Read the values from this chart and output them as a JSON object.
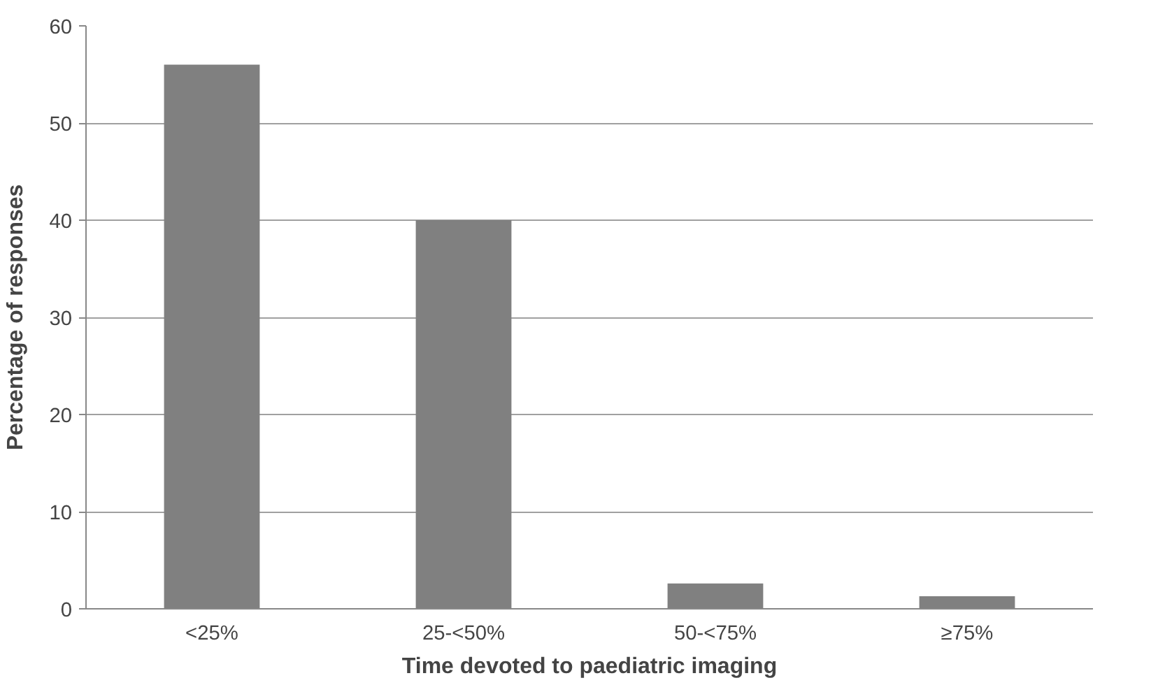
{
  "chart_data": {
    "type": "bar",
    "xlabel": "Time devoted to paediatric imaging",
    "ylabel": "Percentage of responses",
    "categories": [
      "<25%",
      "25-<50%",
      "50-<75%",
      "≥75%"
    ],
    "values": [
      56,
      40,
      2.6,
      1.3
    ],
    "color": "#808080",
    "ylim": [
      0,
      60
    ],
    "yticks": [
      0,
      10,
      20,
      30,
      40,
      50,
      60
    ],
    "grid": "y"
  }
}
